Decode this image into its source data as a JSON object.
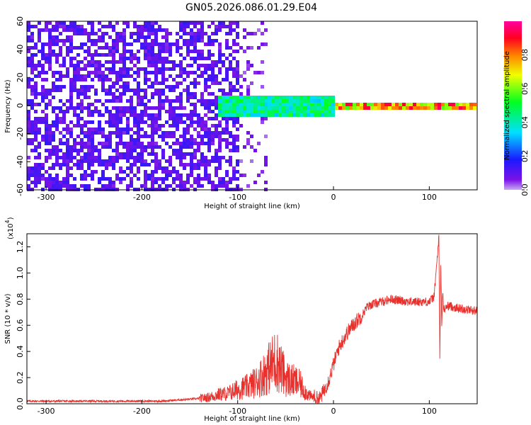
{
  "title": "GN05.2026.086.01.29.E04",
  "colors": {
    "spectrogram_background": "#ffffff",
    "snr_line": "#e8302c",
    "axis": "#000000"
  },
  "chart_data": [
    {
      "type": "heatmap",
      "xlabel": "Height of straight line (km)",
      "ylabel": "Frequency (Hz)",
      "xlim": [
        -320,
        150
      ],
      "ylim": [
        -60,
        60
      ],
      "x_ticks": [
        "-300",
        "-200",
        "-100",
        "0",
        "100"
      ],
      "x_tick_values": [
        -300,
        -200,
        -100,
        0,
        100
      ],
      "y_ticks": [
        "60",
        "40",
        "20",
        "0",
        "-20",
        "-40",
        "-60"
      ],
      "y_tick_values": [
        60,
        40,
        20,
        0,
        -20,
        -40,
        -60
      ],
      "colorbar": {
        "label": "Normalized spectral amplitude",
        "range": [
          0.0,
          1.0
        ],
        "ticks": [
          "0.0",
          "0.2",
          "0.4",
          "0.6",
          "0.8"
        ],
        "tick_values": [
          0.0,
          0.2,
          0.4,
          0.6,
          0.8
        ],
        "colormap": "rainbow (purple-blue-cyan-green-yellow-red-magenta)"
      },
      "features": [
        {
          "name": "broadband noise",
          "x_range": [
            -320,
            -100
          ],
          "freq_range": [
            -60,
            60
          ],
          "amplitude": 0.1
        },
        {
          "name": "narrowband tone onset",
          "x_range": [
            -120,
            0
          ],
          "freq_range": [
            -8,
            8
          ],
          "amplitude": 0.45
        },
        {
          "name": "steady narrowband tone",
          "x_range": [
            0,
            150
          ],
          "freq_range": [
            -3,
            3
          ],
          "amplitude": 0.8
        }
      ]
    },
    {
      "type": "line",
      "xlabel": "Height of straight line (km)",
      "ylabel": "SNR (10 * v/v)",
      "y_multiplier": "(x10",
      "y_multiplier_exp": "4",
      "xlim": [
        -320,
        150
      ],
      "ylim": [
        0,
        1.3
      ],
      "x_ticks": [
        "-300",
        "-200",
        "-100",
        "0",
        "100"
      ],
      "x_tick_values": [
        -300,
        -200,
        -100,
        0,
        100
      ],
      "y_ticks": [
        "0.0",
        "0.2",
        "0.4",
        "0.6",
        "0.8",
        "1.0",
        "1.2"
      ],
      "y_tick_values": [
        0.0,
        0.2,
        0.4,
        0.6,
        0.8,
        1.0,
        1.2
      ],
      "series": [
        {
          "x": [
            -320,
            -300,
            -250,
            -200,
            -180,
            -160,
            -140,
            -130,
            -120,
            -110,
            -100,
            -90,
            -80,
            -70,
            -60,
            -50,
            -45,
            -40,
            -35,
            -30,
            -25,
            -20,
            -15,
            -10,
            -5,
            0,
            5,
            10,
            15,
            20,
            25,
            30,
            35,
            40,
            50,
            60,
            70,
            80,
            90,
            100,
            105,
            110,
            111,
            112,
            113,
            114,
            115,
            120,
            130,
            140,
            150
          ],
          "y": [
            0.02,
            0.02,
            0.02,
            0.02,
            0.02,
            0.03,
            0.04,
            0.05,
            0.07,
            0.08,
            0.11,
            0.13,
            0.17,
            0.25,
            0.34,
            0.2,
            0.18,
            0.17,
            0.15,
            0.1,
            0.06,
            0.05,
            0.03,
            0.1,
            0.18,
            0.3,
            0.42,
            0.49,
            0.55,
            0.6,
            0.64,
            0.68,
            0.74,
            0.76,
            0.78,
            0.8,
            0.79,
            0.78,
            0.78,
            0.78,
            0.82,
            1.27,
            0.35,
            1.05,
            0.6,
            0.85,
            0.72,
            0.75,
            0.73,
            0.72,
            0.71
          ]
        }
      ]
    }
  ]
}
